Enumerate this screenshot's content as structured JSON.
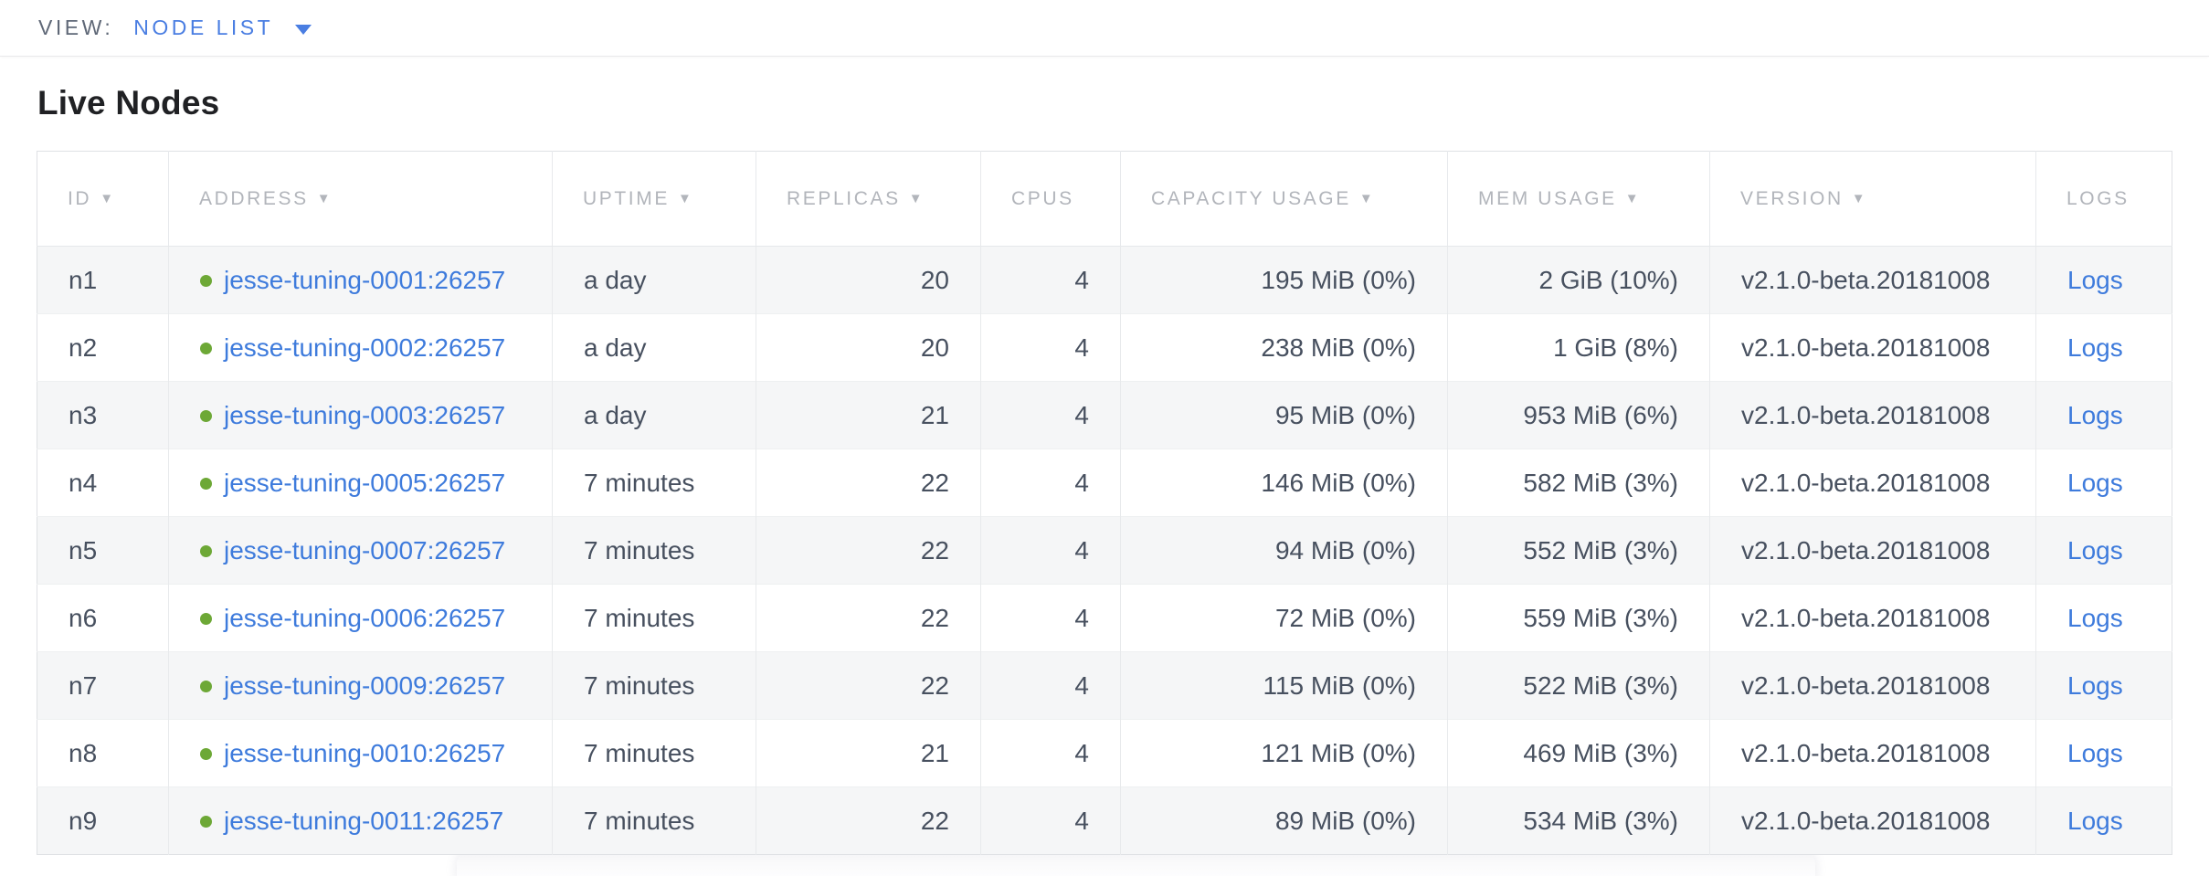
{
  "view_bar": {
    "label": "VIEW:",
    "selected_view": "NODE LIST"
  },
  "page": {
    "title": "Live Nodes"
  },
  "table": {
    "sort_indicator": "▼",
    "columns": [
      {
        "key": "id",
        "label": "ID",
        "sortable": true,
        "align": "left"
      },
      {
        "key": "address",
        "label": "ADDRESS",
        "sortable": true,
        "align": "left"
      },
      {
        "key": "uptime",
        "label": "UPTIME",
        "sortable": true,
        "align": "left"
      },
      {
        "key": "replicas",
        "label": "REPLICAS",
        "sortable": true,
        "align": "right"
      },
      {
        "key": "cpus",
        "label": "CPUS",
        "sortable": false,
        "align": "right"
      },
      {
        "key": "capacity",
        "label": "CAPACITY USAGE",
        "sortable": true,
        "align": "right"
      },
      {
        "key": "mem",
        "label": "MEM USAGE",
        "sortable": true,
        "align": "right"
      },
      {
        "key": "version",
        "label": "VERSION",
        "sortable": true,
        "align": "left"
      },
      {
        "key": "logs",
        "label": "LOGS",
        "sortable": false,
        "align": "left"
      }
    ],
    "rows": [
      {
        "id": "n1",
        "status": "live",
        "address": "jesse-tuning-0001:26257",
        "uptime": "a day",
        "replicas": "20",
        "cpus": "4",
        "capacity": "195 MiB (0%)",
        "mem": "2 GiB (10%)",
        "version": "v2.1.0-beta.20181008",
        "logs": "Logs"
      },
      {
        "id": "n2",
        "status": "live",
        "address": "jesse-tuning-0002:26257",
        "uptime": "a day",
        "replicas": "20",
        "cpus": "4",
        "capacity": "238 MiB (0%)",
        "mem": "1 GiB (8%)",
        "version": "v2.1.0-beta.20181008",
        "logs": "Logs"
      },
      {
        "id": "n3",
        "status": "live",
        "address": "jesse-tuning-0003:26257",
        "uptime": "a day",
        "replicas": "21",
        "cpus": "4",
        "capacity": "95 MiB (0%)",
        "mem": "953 MiB (6%)",
        "version": "v2.1.0-beta.20181008",
        "logs": "Logs"
      },
      {
        "id": "n4",
        "status": "live",
        "address": "jesse-tuning-0005:26257",
        "uptime": "7 minutes",
        "replicas": "22",
        "cpus": "4",
        "capacity": "146 MiB (0%)",
        "mem": "582 MiB (3%)",
        "version": "v2.1.0-beta.20181008",
        "logs": "Logs"
      },
      {
        "id": "n5",
        "status": "live",
        "address": "jesse-tuning-0007:26257",
        "uptime": "7 minutes",
        "replicas": "22",
        "cpus": "4",
        "capacity": "94 MiB (0%)",
        "mem": "552 MiB (3%)",
        "version": "v2.1.0-beta.20181008",
        "logs": "Logs"
      },
      {
        "id": "n6",
        "status": "live",
        "address": "jesse-tuning-0006:26257",
        "uptime": "7 minutes",
        "replicas": "22",
        "cpus": "4",
        "capacity": "72 MiB (0%)",
        "mem": "559 MiB (3%)",
        "version": "v2.1.0-beta.20181008",
        "logs": "Logs"
      },
      {
        "id": "n7",
        "status": "live",
        "address": "jesse-tuning-0009:26257",
        "uptime": "7 minutes",
        "replicas": "22",
        "cpus": "4",
        "capacity": "115 MiB (0%)",
        "mem": "522 MiB (3%)",
        "version": "v2.1.0-beta.20181008",
        "logs": "Logs"
      },
      {
        "id": "n8",
        "status": "live",
        "address": "jesse-tuning-0010:26257",
        "uptime": "7 minutes",
        "replicas": "21",
        "cpus": "4",
        "capacity": "121 MiB (0%)",
        "mem": "469 MiB (3%)",
        "version": "v2.1.0-beta.20181008",
        "logs": "Logs"
      },
      {
        "id": "n9",
        "status": "live",
        "address": "jesse-tuning-0011:26257",
        "uptime": "7 minutes",
        "replicas": "22",
        "cpus": "4",
        "capacity": "89 MiB (0%)",
        "mem": "534 MiB (3%)",
        "version": "v2.1.0-beta.20181008",
        "logs": "Logs"
      }
    ]
  },
  "colors": {
    "accent_blue": "#3e7bdc",
    "dropdown_blue": "#4a7ee2",
    "live_dot_green": "#6da836",
    "header_gray": "#b2b5bb",
    "body_text": "#47505f",
    "row_stripe": "#f5f6f7"
  }
}
